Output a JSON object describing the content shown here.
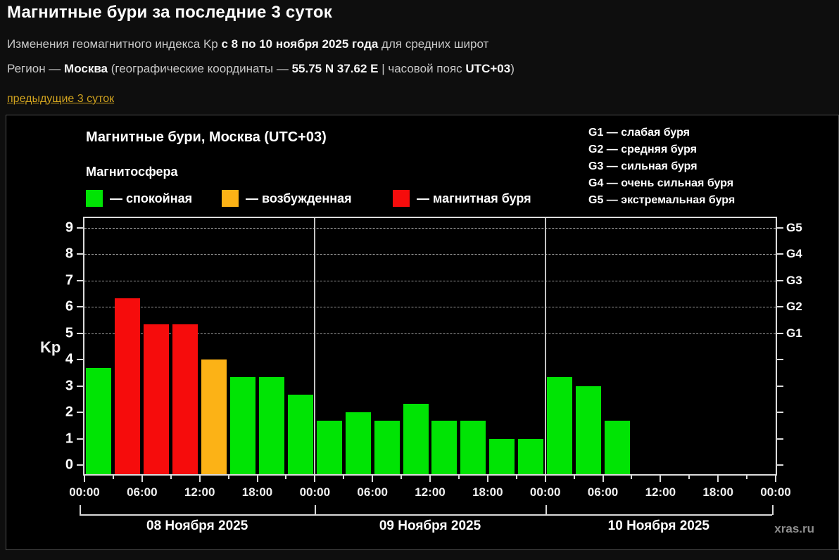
{
  "page": {
    "title": "Магнитные бури за последние 3 суток",
    "subtitle": {
      "pre": "Изменения геомагнитного индекса Kp ",
      "bold": "с 8 по 10 ноября 2025 года",
      "post": " для средних широт"
    },
    "region": {
      "pre": "Регион — ",
      "city": "Москва",
      "mid": " (географические координаты — ",
      "coords": "55.75 N 37.62 E",
      "sep": " | часовой пояс ",
      "tz": "UTC+03",
      "close": ")"
    },
    "prev_link": "предыдущие 3 суток",
    "watermark": "xras.ru"
  },
  "chart": {
    "title": "Магнитные бури, Москва (UTC+03)",
    "legend_title": "Магнитосфера",
    "legend": [
      {
        "label": "— спокойная",
        "status": "quiet"
      },
      {
        "label": "— возбужденная",
        "status": "excited"
      },
      {
        "label": "— магнитная буря",
        "status": "storm"
      }
    ],
    "g_scale": [
      "G1 — слабая буря",
      "G2 — средняя буря",
      "G3 — сильная буря",
      "G4 — очень сильная буря",
      "G5 — экстремальная буря"
    ]
  },
  "chart_data": {
    "type": "bar",
    "title": "Магнитные бури, Москва (UTC+03)",
    "ylabel": "Kp",
    "ylim": [
      0,
      9
    ],
    "y_ticks": [
      0,
      1,
      2,
      3,
      4,
      5,
      6,
      7,
      8,
      9
    ],
    "x_tick_labels": [
      "00:00",
      "06:00",
      "12:00",
      "18:00",
      "00:00",
      "06:00",
      "12:00",
      "18:00",
      "00:00",
      "06:00",
      "12:00",
      "18:00",
      "00:00"
    ],
    "bar_interval_hours": 3,
    "grid_levels_kp": [
      5,
      6,
      7,
      8,
      9
    ],
    "right_axis": [
      {
        "label": "G1",
        "kp": 5
      },
      {
        "label": "G2",
        "kp": 6
      },
      {
        "label": "G3",
        "kp": 7
      },
      {
        "label": "G4",
        "kp": 8
      },
      {
        "label": "G5",
        "kp": 9
      }
    ],
    "colors": {
      "quiet": "#00e404",
      "excited": "#fcb216",
      "storm": "#f60c0c"
    },
    "legend_position": "top-left",
    "grid": "dashed horizontal lines at G1–G5 levels only",
    "days": [
      {
        "date": "08 Ноября 2025",
        "values": [
          3.67,
          6.33,
          5.33,
          5.33,
          4.0,
          3.33,
          3.33,
          2.67
        ],
        "statuses": [
          "quiet",
          "storm",
          "storm",
          "storm",
          "excited",
          "quiet",
          "quiet",
          "quiet"
        ]
      },
      {
        "date": "09 Ноября 2025",
        "values": [
          1.67,
          2.0,
          1.67,
          2.33,
          1.67,
          1.67,
          1.0,
          1.0
        ],
        "statuses": [
          "quiet",
          "quiet",
          "quiet",
          "quiet",
          "quiet",
          "quiet",
          "quiet",
          "quiet"
        ]
      },
      {
        "date": "10 Ноября 2025",
        "values": [
          3.33,
          3.0,
          1.67
        ],
        "statuses": [
          "quiet",
          "quiet",
          "quiet"
        ]
      }
    ]
  }
}
